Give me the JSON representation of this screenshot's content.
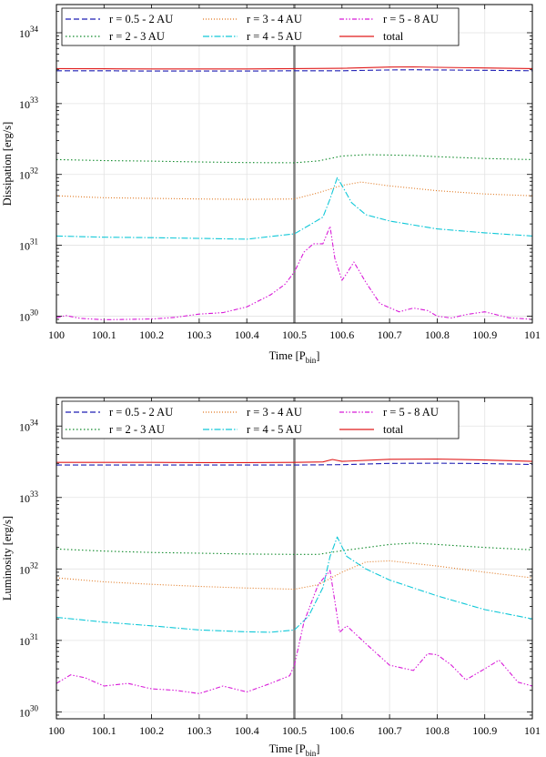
{
  "chart_data": [
    {
      "type": "line",
      "title": "",
      "xlabel": "Time [P",
      "xlabel_sub": "bin",
      "xlabel_end": "]",
      "ylabel": "Dissipation [erg/s]",
      "yscale": "log",
      "xlim": [
        100,
        101
      ],
      "ylim": [
        8e+29,
        2.5e+34
      ],
      "grid": true,
      "legend_position": "top-left",
      "x_ticks": [
        "100",
        "100.1",
        "100.2",
        "100.3",
        "100.4",
        "100.5",
        "100.6",
        "100.7",
        "100.8",
        "100.9",
        "101"
      ],
      "y_tick_labels": [
        {
          "base": "10",
          "exp": "30"
        },
        {
          "base": "10",
          "exp": "31"
        },
        {
          "base": "10",
          "exp": "32"
        },
        {
          "base": "10",
          "exp": "33"
        },
        {
          "base": "10",
          "exp": "34"
        }
      ],
      "vline_x": 100.5,
      "series": [
        {
          "name": "r = 0.5 - 2 AU",
          "color": "#1f1fb4",
          "dash": "6,3",
          "x": [
            100,
            100.1,
            100.2,
            100.3,
            100.4,
            100.5,
            100.6,
            100.7,
            100.75,
            100.8,
            100.9,
            101
          ],
          "values": [
            2.9e+33,
            2.9e+33,
            2.88e+33,
            2.88e+33,
            2.88e+33,
            2.9e+33,
            2.9e+33,
            2.98e+33,
            3e+33,
            2.98e+33,
            2.95e+33,
            2.9e+33
          ]
        },
        {
          "name": "r = 2 - 3 AU",
          "color": "#0f8a2a",
          "dash": "1.5,2.5",
          "x": [
            100,
            100.1,
            100.2,
            100.3,
            100.4,
            100.5,
            100.55,
            100.6,
            100.65,
            100.7,
            100.75,
            100.8,
            100.9,
            101
          ],
          "values": [
            1.62e+32,
            1.57e+32,
            1.54e+32,
            1.5e+32,
            1.47e+32,
            1.46e+32,
            1.55e+32,
            1.82e+32,
            1.9e+32,
            1.88e+32,
            1.85e+32,
            1.78e+32,
            1.68e+32,
            1.62e+32
          ]
        },
        {
          "name": "r = 3 - 4 AU",
          "color": "#e07820",
          "dash": "1,2",
          "x": [
            100,
            100.1,
            100.2,
            100.3,
            100.4,
            100.5,
            100.55,
            100.6,
            100.64,
            100.7,
            100.8,
            100.9,
            101
          ],
          "values": [
            5e+31,
            4.7e+31,
            4.6e+31,
            4.5e+31,
            4.45e+31,
            4.5e+31,
            5.5e+31,
            7e+31,
            7.8e+31,
            6.9e+31,
            5.9e+31,
            5.3e+31,
            5e+31
          ]
        },
        {
          "name": "r = 4 - 5 AU",
          "color": "#10c8d8",
          "dash": "7,2,1.5,2",
          "x": [
            100,
            100.1,
            100.2,
            100.3,
            100.4,
            100.5,
            100.53,
            100.56,
            100.575,
            100.59,
            100.6,
            100.62,
            100.65,
            100.7,
            100.8,
            100.9,
            101
          ],
          "values": [
            1.35e+31,
            1.3e+31,
            1.28e+31,
            1.25e+31,
            1.22e+31,
            1.45e+31,
            1.9e+31,
            2.5e+31,
            4.5e+31,
            9e+31,
            7e+31,
            4e+31,
            2.7e+31,
            2.2e+31,
            1.7e+31,
            1.5e+31,
            1.35e+31
          ]
        },
        {
          "name": "r = 5 - 8 AU",
          "color": "#d81ad8",
          "dash": "5,2,1.5,2,1.5,2",
          "x": [
            100,
            100.02,
            100.05,
            100.1,
            100.15,
            100.2,
            100.25,
            100.3,
            100.35,
            100.4,
            100.45,
            100.48,
            100.5,
            100.52,
            100.54,
            100.56,
            100.575,
            100.585,
            100.6,
            100.61,
            100.625,
            100.65,
            100.68,
            100.72,
            100.75,
            100.78,
            100.8,
            100.83,
            100.86,
            100.9,
            100.95,
            101
          ],
          "values": [
            9.5e+29,
            1.02e+30,
            9.3e+29,
            8.9e+29,
            9e+29,
            9.1e+29,
            9.6e+29,
            1.07e+30,
            1.12e+30,
            1.35e+30,
            2e+30,
            2.8e+30,
            4.2e+30,
            8e+30,
            1.05e+31,
            1.05e+31,
            1.85e+31,
            6.5e+30,
            3.2e+30,
            4e+30,
            5.8e+30,
            3e+30,
            1.5e+30,
            1.15e+30,
            1.3e+30,
            1.2e+30,
            1e+30,
            9.4e+29,
            1.05e+30,
            1.15e+30,
            9.5e+29,
            9e+29
          ]
        },
        {
          "name": "total",
          "color": "#e01a1a",
          "dash": "",
          "x": [
            100,
            100.1,
            100.2,
            100.3,
            100.4,
            100.5,
            100.6,
            100.7,
            100.75,
            100.8,
            100.9,
            101
          ],
          "values": [
            3.12e+33,
            3.1e+33,
            3.08e+33,
            3.08e+33,
            3.08e+33,
            3.12e+33,
            3.15e+33,
            3.28e+33,
            3.3e+33,
            3.25e+33,
            3.18e+33,
            3.12e+33
          ]
        }
      ]
    },
    {
      "type": "line",
      "title": "",
      "xlabel": "Time [P",
      "xlabel_sub": "bin",
      "xlabel_end": "]",
      "ylabel": "Luminosity [erg/s]",
      "yscale": "log",
      "xlim": [
        100,
        101
      ],
      "ylim": [
        8e+29,
        2.5e+34
      ],
      "grid": true,
      "legend_position": "top-left",
      "x_ticks": [
        "100",
        "100.1",
        "100.2",
        "100.3",
        "100.4",
        "100.5",
        "100.6",
        "100.7",
        "100.8",
        "100.9",
        "101"
      ],
      "y_tick_labels": [
        {
          "base": "10",
          "exp": "30"
        },
        {
          "base": "10",
          "exp": "31"
        },
        {
          "base": "10",
          "exp": "32"
        },
        {
          "base": "10",
          "exp": "33"
        },
        {
          "base": "10",
          "exp": "34"
        }
      ],
      "vline_x": 100.5,
      "series": [
        {
          "name": "r = 0.5 - 2 AU",
          "color": "#1f1fb4",
          "dash": "6,3",
          "x": [
            100,
            100.1,
            100.2,
            100.3,
            100.4,
            100.5,
            100.6,
            100.7,
            100.8,
            100.9,
            101
          ],
          "values": [
            2.85e+33,
            2.85e+33,
            2.85e+33,
            2.85e+33,
            2.85e+33,
            2.85e+33,
            2.88e+33,
            3e+33,
            3.02e+33,
            2.98e+33,
            2.9e+33
          ]
        },
        {
          "name": "r = 2 - 3 AU",
          "color": "#0f8a2a",
          "dash": "1.5,2.5",
          "x": [
            100,
            100.1,
            100.2,
            100.3,
            100.4,
            100.5,
            100.55,
            100.6,
            100.7,
            100.75,
            100.8,
            100.9,
            101
          ],
          "values": [
            1.9e+32,
            1.78e+32,
            1.7e+32,
            1.66e+32,
            1.62e+32,
            1.6e+32,
            1.6e+32,
            1.8e+32,
            2.2e+32,
            2.3e+32,
            2.2e+32,
            2e+32,
            1.85e+32
          ]
        },
        {
          "name": "r = 3 - 4 AU",
          "color": "#e07820",
          "dash": "1,2",
          "x": [
            100,
            100.1,
            100.2,
            100.3,
            100.4,
            100.5,
            100.55,
            100.6,
            100.65,
            100.7,
            100.8,
            100.9,
            101
          ],
          "values": [
            7.5e+31,
            6.6e+31,
            6.1e+31,
            5.7e+31,
            5.4e+31,
            5.2e+31,
            6e+31,
            9e+31,
            1.25e+32,
            1.3e+32,
            1.1e+32,
            9e+31,
            7.5e+31
          ]
        },
        {
          "name": "r = 4 - 5 AU",
          "color": "#10c8d8",
          "dash": "7,2,1.5,2",
          "x": [
            100,
            100.05,
            100.1,
            100.2,
            100.3,
            100.4,
            100.45,
            100.5,
            100.53,
            100.56,
            100.575,
            100.59,
            100.61,
            100.65,
            100.7,
            100.8,
            100.9,
            101
          ],
          "values": [
            2.1e+31,
            1.95e+31,
            1.8e+31,
            1.6e+31,
            1.4e+31,
            1.32e+31,
            1.3e+31,
            1.4e+31,
            2.2e+31,
            5.5e+31,
            1.5e+32,
            2.8e+32,
            1.5e+32,
            1e+32,
            7e+31,
            4.2e+31,
            2.7e+31,
            2e+31
          ]
        },
        {
          "name": "r = 5 - 8 AU",
          "color": "#d81ad8",
          "dash": "5,2,1.5,2,1.5,2",
          "x": [
            100,
            100.03,
            100.06,
            100.1,
            100.15,
            100.2,
            100.25,
            100.3,
            100.35,
            100.4,
            100.45,
            100.49,
            100.5,
            100.52,
            100.55,
            100.575,
            100.585,
            100.595,
            100.61,
            100.65,
            100.7,
            100.75,
            100.78,
            100.8,
            100.83,
            100.86,
            100.9,
            100.93,
            100.97,
            101
          ],
          "values": [
            2.5e+30,
            3.3e+30,
            3e+30,
            2.3e+30,
            2.5e+30,
            2.1e+30,
            2e+30,
            1.8e+30,
            2.3e+30,
            1.9e+30,
            2.5e+30,
            3.2e+30,
            4.5e+30,
            1.8e+31,
            6e+31,
            9.5e+31,
            3.5e+31,
            1.3e+31,
            1.6e+31,
            9e+30,
            4.5e+30,
            3.8e+30,
            6.5e+30,
            6.3e+30,
            4.5e+30,
            2.8e+30,
            4e+30,
            5.3e+30,
            2.6e+30,
            2.3e+30
          ]
        },
        {
          "name": "total",
          "color": "#e01a1a",
          "dash": "",
          "x": [
            100,
            100.1,
            100.2,
            100.3,
            100.4,
            100.5,
            100.56,
            100.58,
            100.6,
            100.7,
            100.8,
            100.9,
            101
          ],
          "values": [
            3.1e+33,
            3.1e+33,
            3.1e+33,
            3.08e+33,
            3.08e+33,
            3.1e+33,
            3.15e+33,
            3.4e+33,
            3.2e+33,
            3.42e+33,
            3.45e+33,
            3.35e+33,
            3.2e+33
          ]
        }
      ]
    }
  ]
}
